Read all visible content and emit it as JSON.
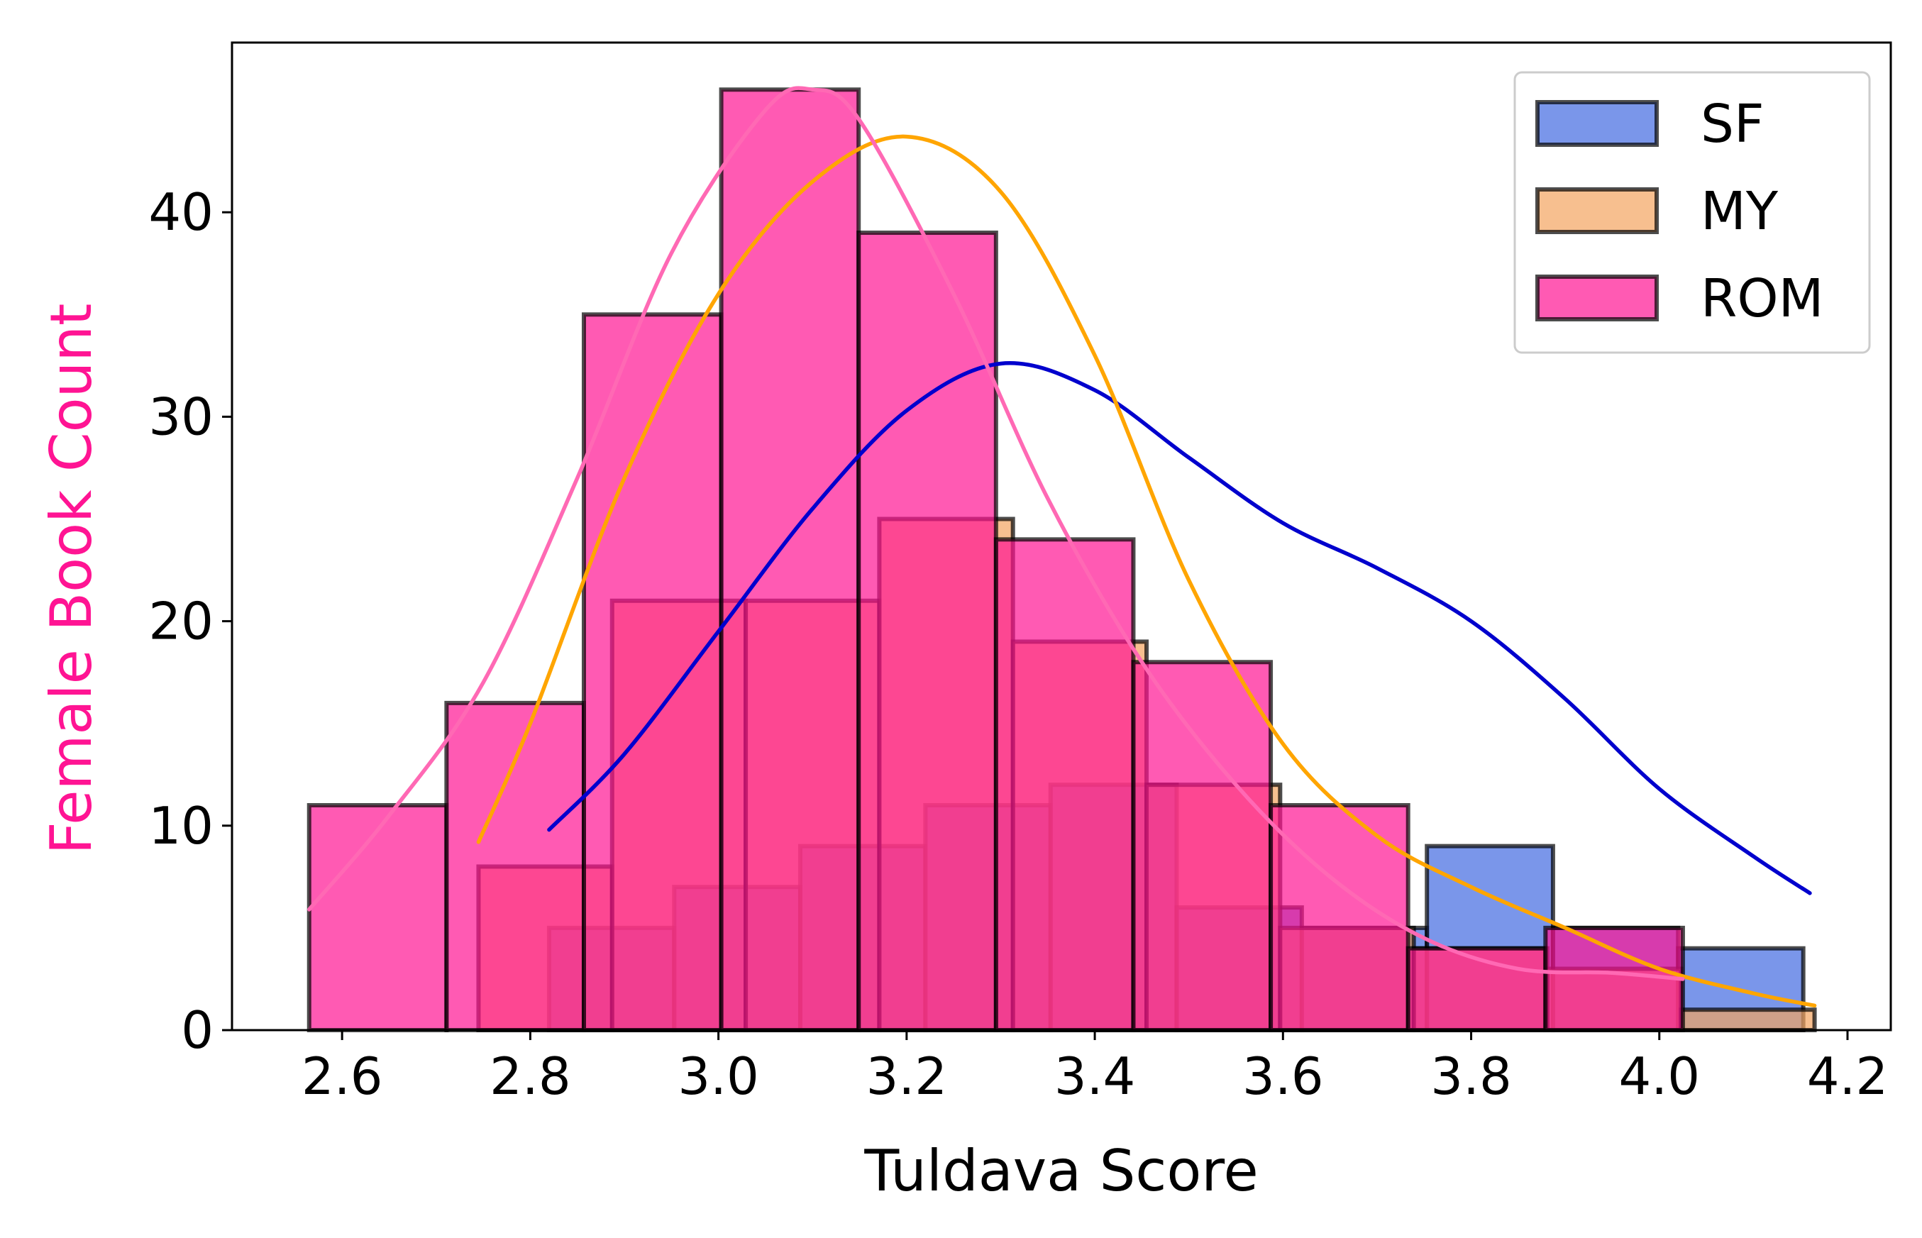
{
  "chart_data": {
    "type": "histogram",
    "title": "",
    "xlabel": "Tuldava Score",
    "ylabel": "Female Book Count",
    "xlim": [
      2.483,
      4.246
    ],
    "ylim": [
      0,
      48.3
    ],
    "xticks": [
      2.6,
      2.8,
      3.0,
      3.2,
      3.4,
      3.6,
      3.8,
      4.0,
      4.2
    ],
    "xtick_labels": [
      "2.6",
      "2.8",
      "3.0",
      "3.2",
      "3.4",
      "3.6",
      "3.8",
      "4.0",
      "4.2"
    ],
    "yticks": [
      0,
      10,
      20,
      30,
      40
    ],
    "ytick_labels": [
      "0",
      "10",
      "20",
      "30",
      "40"
    ],
    "grid": false,
    "legend_position": "top-right",
    "series": [
      {
        "name": "SF",
        "fill_color": "#4169e1",
        "fill_opacity": 0.7,
        "kde_color": "#0000cd",
        "bin_edges": [
          2.82,
          2.953,
          3.087,
          3.22,
          3.353,
          3.487,
          3.62,
          3.753,
          3.887,
          4.02,
          4.153
        ],
        "counts": [
          5,
          7,
          9,
          11,
          12,
          6,
          5,
          9,
          5,
          4
        ],
        "kde": [
          [
            2.82,
            9.8
          ],
          [
            2.9,
            13.5
          ],
          [
            3.0,
            19.5
          ],
          [
            3.1,
            25.5
          ],
          [
            3.2,
            30.3
          ],
          [
            3.3,
            32.6
          ],
          [
            3.4,
            31.3
          ],
          [
            3.5,
            28.0
          ],
          [
            3.6,
            24.8
          ],
          [
            3.7,
            22.6
          ],
          [
            3.8,
            20.0
          ],
          [
            3.9,
            16.2
          ],
          [
            4.0,
            11.8
          ],
          [
            4.1,
            8.5
          ],
          [
            4.16,
            6.7
          ]
        ]
      },
      {
        "name": "MY",
        "fill_color": "#f4a460",
        "fill_opacity": 0.7,
        "kde_color": "#ffa500",
        "bin_edges": [
          2.745,
          2.887,
          3.029,
          3.171,
          3.313,
          3.455,
          3.597,
          3.739,
          3.881,
          4.023,
          4.165
        ],
        "counts": [
          8,
          21,
          21,
          25,
          19,
          12,
          5,
          4,
          3,
          1
        ],
        "kde": [
          [
            2.745,
            9.2
          ],
          [
            2.8,
            15.0
          ],
          [
            2.9,
            27.0
          ],
          [
            3.0,
            36.0
          ],
          [
            3.1,
            41.5
          ],
          [
            3.2,
            43.7
          ],
          [
            3.3,
            41.0
          ],
          [
            3.4,
            33.0
          ],
          [
            3.5,
            22.0
          ],
          [
            3.6,
            14.0
          ],
          [
            3.7,
            9.5
          ],
          [
            3.8,
            7.0
          ],
          [
            3.9,
            5.0
          ],
          [
            4.0,
            3.0
          ],
          [
            4.1,
            1.8
          ],
          [
            4.165,
            1.2
          ]
        ]
      },
      {
        "name": "ROM",
        "fill_color": "#ff1493",
        "fill_opacity": 0.7,
        "kde_color": "#ff69b4",
        "bin_edges": [
          2.565,
          2.711,
          2.857,
          3.003,
          3.149,
          3.295,
          3.441,
          3.587,
          3.733,
          3.879,
          4.025
        ],
        "counts": [
          11,
          16,
          35,
          46,
          39,
          24,
          18,
          11,
          4,
          5
        ],
        "kde": [
          [
            2.565,
            5.9
          ],
          [
            2.65,
            10.5
          ],
          [
            2.75,
            17.0
          ],
          [
            2.85,
            27.0
          ],
          [
            2.95,
            38.0
          ],
          [
            3.05,
            45.0
          ],
          [
            3.1,
            46.0
          ],
          [
            3.15,
            44.5
          ],
          [
            3.25,
            36.0
          ],
          [
            3.35,
            26.0
          ],
          [
            3.45,
            18.0
          ],
          [
            3.55,
            12.0
          ],
          [
            3.65,
            7.5
          ],
          [
            3.75,
            4.5
          ],
          [
            3.85,
            3.0
          ],
          [
            3.95,
            2.8
          ],
          [
            4.025,
            2.5
          ]
        ]
      }
    ]
  },
  "legend": {
    "items": [
      {
        "label": "SF",
        "color": "#4169e1"
      },
      {
        "label": "MY",
        "color": "#f4a460"
      },
      {
        "label": "ROM",
        "color": "#ff1493"
      }
    ]
  },
  "colors": {
    "ylabel": "#ff1493",
    "bar_edge": "#000000",
    "axis": "#000000"
  }
}
